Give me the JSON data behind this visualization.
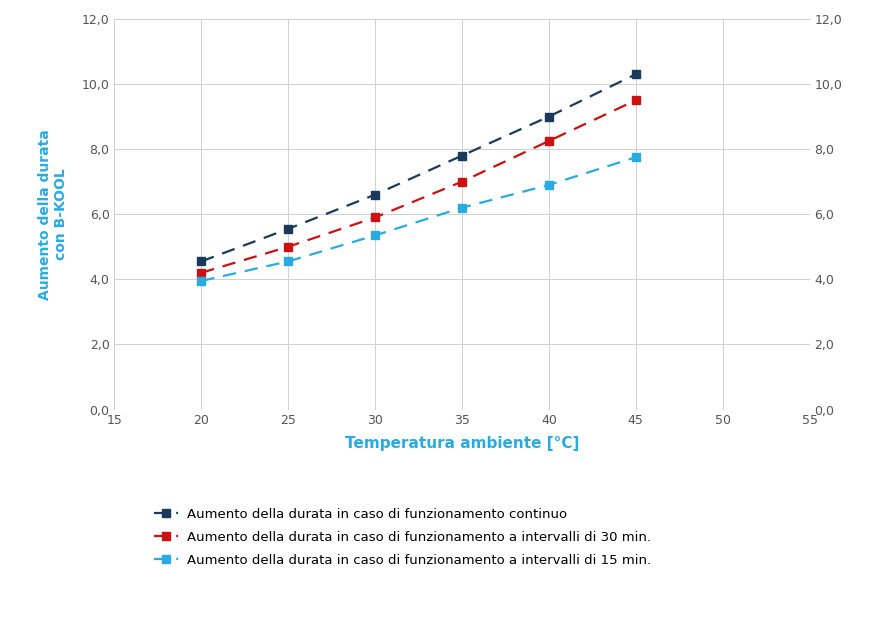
{
  "x": [
    20,
    25,
    30,
    35,
    40,
    45
  ],
  "series": [
    {
      "label": "Aumento della durata in caso di funzionamento continuo",
      "y": [
        4.55,
        5.55,
        6.6,
        7.8,
        9.0,
        10.3
      ],
      "color": "#1a3a5c",
      "marker": "s",
      "markersize": 6
    },
    {
      "label": "Aumento della durata in caso di funzionamento a intervalli di 30 min.",
      "y": [
        4.2,
        5.0,
        5.9,
        7.0,
        8.25,
        9.5
      ],
      "color": "#cc1111",
      "marker": "s",
      "markersize": 6
    },
    {
      "label": "Aumento della durata in caso di funzionamento a intervalli di 15 min.",
      "y": [
        3.95,
        4.55,
        5.35,
        6.2,
        6.9,
        7.75
      ],
      "color": "#29abe2",
      "marker": "s",
      "markersize": 6
    }
  ],
  "xlabel": "Temperatura ambiente [°C]",
  "ylabel": "Aumento della durata\ncon B-KOOL",
  "xlim": [
    15,
    55
  ],
  "ylim": [
    0,
    12
  ],
  "xticks": [
    15,
    20,
    25,
    30,
    35,
    40,
    45,
    50,
    55
  ],
  "yticks": [
    0.0,
    2.0,
    4.0,
    6.0,
    8.0,
    10.0,
    12.0
  ],
  "background_color": "#ffffff",
  "grid_color": "#d0d0d0",
  "xlabel_color": "#29abe2",
  "ylabel_color": "#29abe2",
  "tick_color": "#555555"
}
